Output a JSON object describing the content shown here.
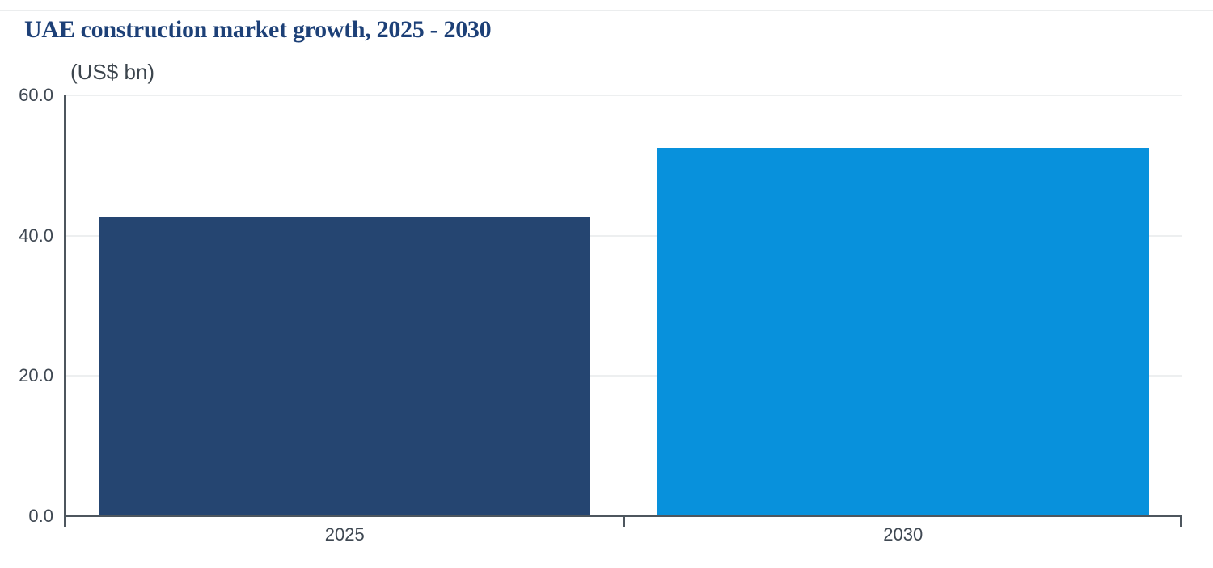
{
  "header": {
    "title": "UAE construction market growth, 2025 - 2030",
    "subtitle": "(US$ bn)"
  },
  "colors": {
    "title_text": "#1D4077",
    "axis": "#4D565E",
    "gridline": "#EDEFF0",
    "tick_label_text": "#3F4852",
    "subtitle_text": "#3D464E",
    "bar_2025": "#254571",
    "bar_2030": "#0891DC",
    "background": "#FFFFFF"
  },
  "chart_data": {
    "type": "bar",
    "title": "UAE construction market growth, 2025 - 2030",
    "unit_label": "(US$ bn)",
    "xlabel": "",
    "ylabel": "US$ bn",
    "categories": [
      "2025",
      "2030"
    ],
    "values": [
      42.7,
      52.5
    ],
    "bar_colors": [
      "#254571",
      "#0891DC"
    ],
    "ylim": [
      0,
      60
    ],
    "yticks": [
      0,
      20,
      40,
      60
    ],
    "ytick_labels": [
      "0.0",
      "20.0",
      "40.0",
      "60.0"
    ],
    "grid": true,
    "gridlines": "horizontal",
    "legend": false
  }
}
